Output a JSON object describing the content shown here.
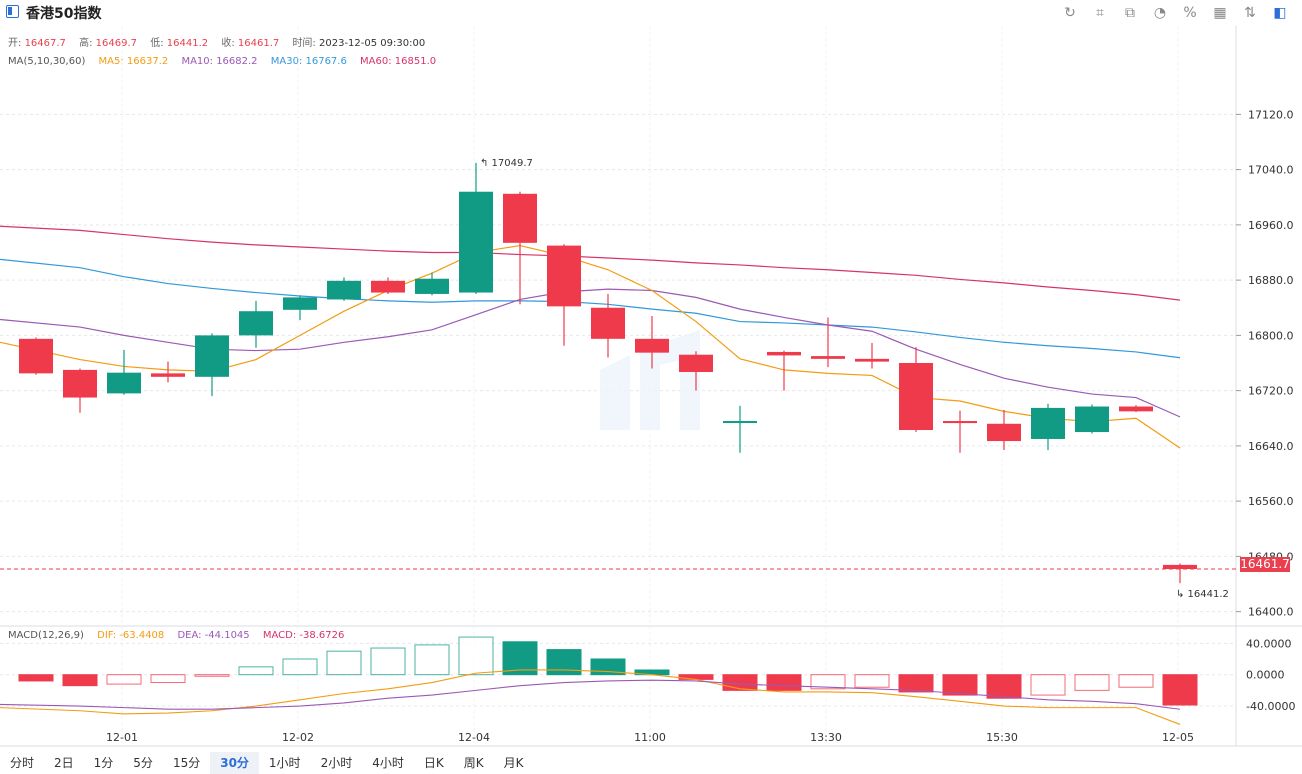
{
  "title": "香港50指数",
  "toolbar": {
    "icons": [
      "refresh-icon",
      "draw-icon",
      "chart-type-icon",
      "pie-icon",
      "percent-icon",
      "grid-icon",
      "compare-icon",
      "settings-icon"
    ]
  },
  "ohlc": {
    "open_label": "开:",
    "open": "16467.7",
    "high_label": "高:",
    "high": "16469.7",
    "low_label": "低:",
    "low": "16441.2",
    "close_label": "收:",
    "close": "16461.7",
    "time_label": "时间:",
    "time": "2023-12-05 09:30:00"
  },
  "ma_legend": {
    "name": "MA(5,10,30,60)",
    "ma5": "MA5: 16637.2",
    "ma10": "MA10: 16682.2",
    "ma30": "MA30: 16767.6",
    "ma60": "MA60: 16851.0"
  },
  "macd_legend": {
    "name": "MACD(12,26,9)",
    "dif": "DIF: -63.4408",
    "dea": "DEA: -44.1045",
    "macd": "MACD: -38.6726"
  },
  "current_price_label": "16461.7",
  "periods": [
    "分时",
    "2日",
    "1分",
    "5分",
    "15分",
    "30分",
    "1小时",
    "2小时",
    "4小时",
    "日K",
    "周K",
    "月K"
  ],
  "active_period": "30分",
  "colors": {
    "up": "#129b84",
    "down": "#ef3a4c",
    "ma5": "#f39c12",
    "ma10": "#9b59b6",
    "ma30": "#3498db",
    "ma60": "#d6336c"
  },
  "chart_data": {
    "type": "candlestick",
    "price_axis": {
      "ticks": [
        17120.0,
        17040.0,
        16960.0,
        16880.0,
        16800.0,
        16720.0,
        16640.0,
        16560.0,
        16480.0,
        16400.0
      ],
      "range": [
        16385,
        17177
      ]
    },
    "macd_axis": {
      "ticks": [
        40.0,
        0.0,
        -40.0
      ],
      "range": [
        -68,
        57
      ]
    },
    "x_tick_labels": [
      "12-01",
      "12-02",
      "12-04",
      "11:00",
      "13:30",
      "15:30",
      "12-05"
    ],
    "annotations": {
      "high": "17049.7",
      "low": "16441.2"
    },
    "candles": [
      {
        "o": 16795,
        "c": 16745,
        "h": 16797,
        "l": 16743
      },
      {
        "o": 16750,
        "c": 16710,
        "h": 16752,
        "l": 16688
      },
      {
        "o": 16716,
        "c": 16746,
        "h": 16779,
        "l": 16714
      },
      {
        "o": 16745,
        "c": 16740,
        "h": 16762,
        "l": 16732
      },
      {
        "o": 16740,
        "c": 16800,
        "h": 16803,
        "l": 16712
      },
      {
        "o": 16800,
        "c": 16835,
        "h": 16850,
        "l": 16782
      },
      {
        "o": 16837,
        "c": 16855,
        "h": 16858,
        "l": 16822
      },
      {
        "o": 16852,
        "c": 16879,
        "h": 16884,
        "l": 16850
      },
      {
        "o": 16879,
        "c": 16862,
        "h": 16884,
        "l": 16860
      },
      {
        "o": 16860,
        "c": 16882,
        "h": 16891,
        "l": 16858
      },
      {
        "o": 16862,
        "c": 17008,
        "h": 17049.7,
        "l": 16860
      },
      {
        "o": 17005,
        "c": 16934,
        "h": 17008,
        "l": 16845
      },
      {
        "o": 16930,
        "c": 16842,
        "h": 16932,
        "l": 16785
      },
      {
        "o": 16840,
        "c": 16795,
        "h": 16860,
        "l": 16768
      },
      {
        "o": 16795,
        "c": 16775,
        "h": 16828,
        "l": 16752
      },
      {
        "o": 16772,
        "c": 16747,
        "h": 16777,
        "l": 16720
      },
      {
        "o": 16674,
        "c": 16676,
        "h": 16698,
        "l": 16630
      },
      {
        "o": 16776,
        "c": 16771,
        "h": 16778,
        "l": 16720
      },
      {
        "o": 16770,
        "c": 16766,
        "h": 16826,
        "l": 16754
      },
      {
        "o": 16766,
        "c": 16762,
        "h": 16789,
        "l": 16752
      },
      {
        "o": 16760,
        "c": 16663,
        "h": 16783,
        "l": 16660
      },
      {
        "o": 16676,
        "c": 16673,
        "h": 16691,
        "l": 16630
      },
      {
        "o": 16672,
        "c": 16647,
        "h": 16692,
        "l": 16634
      },
      {
        "o": 16650,
        "c": 16695,
        "h": 16701,
        "l": 16634
      },
      {
        "o": 16660,
        "c": 16697,
        "h": 16700,
        "l": 16658
      },
      {
        "o": 16697,
        "c": 16690,
        "h": 16699,
        "l": 16689
      },
      {
        "o": 16467.7,
        "c": 16461.7,
        "h": 16469.7,
        "l": 16441.2
      }
    ],
    "ma5": [
      16790,
      16765,
      16755,
      16750,
      16748,
      16765,
      16800,
      16835,
      16865,
      16890,
      16920,
      16930,
      16915,
      16895,
      16865,
      16820,
      16766,
      16750,
      16745,
      16742,
      16710,
      16705,
      16690,
      16680,
      16675,
      16680,
      16637
    ],
    "ma10": [
      16823,
      16812,
      16800,
      16790,
      16780,
      16778,
      16780,
      16790,
      16798,
      16808,
      16830,
      16852,
      16863,
      16867,
      16865,
      16855,
      16838,
      16826,
      16815,
      16806,
      16780,
      16758,
      16738,
      16725,
      16715,
      16710,
      16682
    ],
    "ma30": [
      16910,
      16898,
      16885,
      16875,
      16868,
      16862,
      16857,
      16853,
      16850,
      16848,
      16850,
      16850,
      16849,
      16845,
      16838,
      16832,
      16820,
      16818,
      16815,
      16812,
      16805,
      16797,
      16790,
      16785,
      16781,
      16776,
      16767.6
    ],
    "ma60": [
      16958,
      16952,
      16946,
      16940,
      16935,
      16931,
      16928,
      16925,
      16922,
      16920,
      16920,
      16917,
      16915,
      16912,
      16909,
      16905,
      16902,
      16898,
      16895,
      16891,
      16887,
      16881,
      16876,
      16870,
      16865,
      16859,
      16851
    ],
    "macd_hist": [
      -8,
      -14,
      -12,
      -10,
      -2,
      10,
      20,
      30,
      34,
      38,
      48,
      42,
      32,
      20,
      6,
      -6,
      -20,
      -20,
      -18,
      -16,
      -22,
      -26,
      -30,
      -26,
      -20,
      -16,
      -38.6726
    ],
    "dif": [
      -42,
      -46,
      -50,
      -49,
      -46,
      -40,
      -32,
      -24,
      -18,
      -10,
      2,
      6,
      6,
      4,
      0,
      -6,
      -18,
      -22,
      -22,
      -23,
      -28,
      -34,
      -40,
      -42,
      -42,
      -42,
      -63.4408
    ],
    "dea": [
      -38,
      -40,
      -42,
      -44,
      -44,
      -42,
      -40,
      -36,
      -30,
      -26,
      -20,
      -14,
      -10,
      -8,
      -7,
      -8,
      -12,
      -14,
      -16,
      -18,
      -20,
      -24,
      -28,
      -32,
      -34,
      -37,
      -44.1045
    ]
  }
}
